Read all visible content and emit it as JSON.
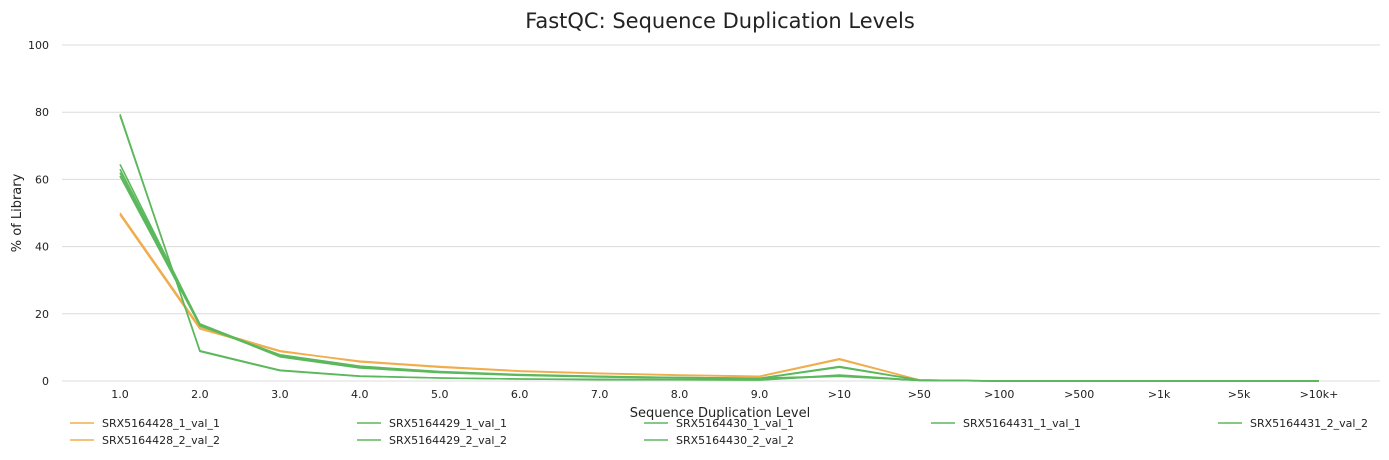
{
  "chart_data": {
    "type": "line",
    "title": "FastQC: Sequence Duplication Levels",
    "xlabel": "Sequence Duplication Level",
    "ylabel": "% of Library",
    "categories": [
      "1.0",
      "2.0",
      "3.0",
      "4.0",
      "5.0",
      "6.0",
      "7.0",
      "8.0",
      "9.0",
      ">10",
      ">50",
      ">100",
      ">500",
      ">1k",
      ">5k",
      ">10k+"
    ],
    "ylim": [
      0,
      100
    ],
    "yticks": [
      0,
      20,
      40,
      60,
      80,
      100
    ],
    "grid": true,
    "legend_placement": "bottom",
    "series": [
      {
        "name": "SRX5164428_1_val_1",
        "color": "#f0ad4e",
        "values": [
          49.5,
          15.5,
          8.8,
          5.9,
          4.3,
          3.0,
          2.3,
          1.8,
          1.4,
          6.6,
          0.3,
          0.02,
          0.01,
          0,
          0,
          0
        ]
      },
      {
        "name": "SRX5164428_2_val_2",
        "color": "#f0ad4e",
        "values": [
          50.0,
          16.0,
          9.0,
          5.7,
          4.1,
          2.9,
          2.2,
          1.7,
          1.3,
          6.4,
          0.3,
          0.02,
          0.01,
          0,
          0,
          0
        ]
      },
      {
        "name": "SRX5164429_1_val_1",
        "color": "#5cb85c",
        "values": [
          79.0,
          9.0,
          3.2,
          1.5,
          0.9,
          0.6,
          0.5,
          0.4,
          0.3,
          1.8,
          0.2,
          0.01,
          0,
          0,
          0,
          0
        ]
      },
      {
        "name": "SRX5164429_2_val_2",
        "color": "#5cb85c",
        "values": [
          79.4,
          8.8,
          3.1,
          1.4,
          0.9,
          0.6,
          0.4,
          0.4,
          0.3,
          1.6,
          0.2,
          0.01,
          0,
          0,
          0,
          0
        ]
      },
      {
        "name": "SRX5164430_1_val_1",
        "color": "#5cb85c",
        "values": [
          62.0,
          16.5,
          7.5,
          4.2,
          2.7,
          1.8,
          1.3,
          1.0,
          0.8,
          4.3,
          0.3,
          0.01,
          0,
          0,
          0,
          0
        ]
      },
      {
        "name": "SRX5164430_2_val_2",
        "color": "#5cb85c",
        "values": [
          64.5,
          16.8,
          7.2,
          3.9,
          2.5,
          1.7,
          1.2,
          0.9,
          0.7,
          4.1,
          0.3,
          0.01,
          0,
          0,
          0,
          0
        ]
      },
      {
        "name": "SRX5164431_1_val_1",
        "color": "#5cb85c",
        "values": [
          61.0,
          16.5,
          7.8,
          4.4,
          2.8,
          1.9,
          1.4,
          1.0,
          0.8,
          1.5,
          0.2,
          0.01,
          0,
          0,
          0,
          0
        ]
      },
      {
        "name": "SRX5164431_2_val_2",
        "color": "#5cb85c",
        "values": [
          63.0,
          17.0,
          7.6,
          4.1,
          2.6,
          1.8,
          1.3,
          0.9,
          0.7,
          1.4,
          0.2,
          0.01,
          0,
          0,
          0,
          0
        ]
      }
    ]
  }
}
